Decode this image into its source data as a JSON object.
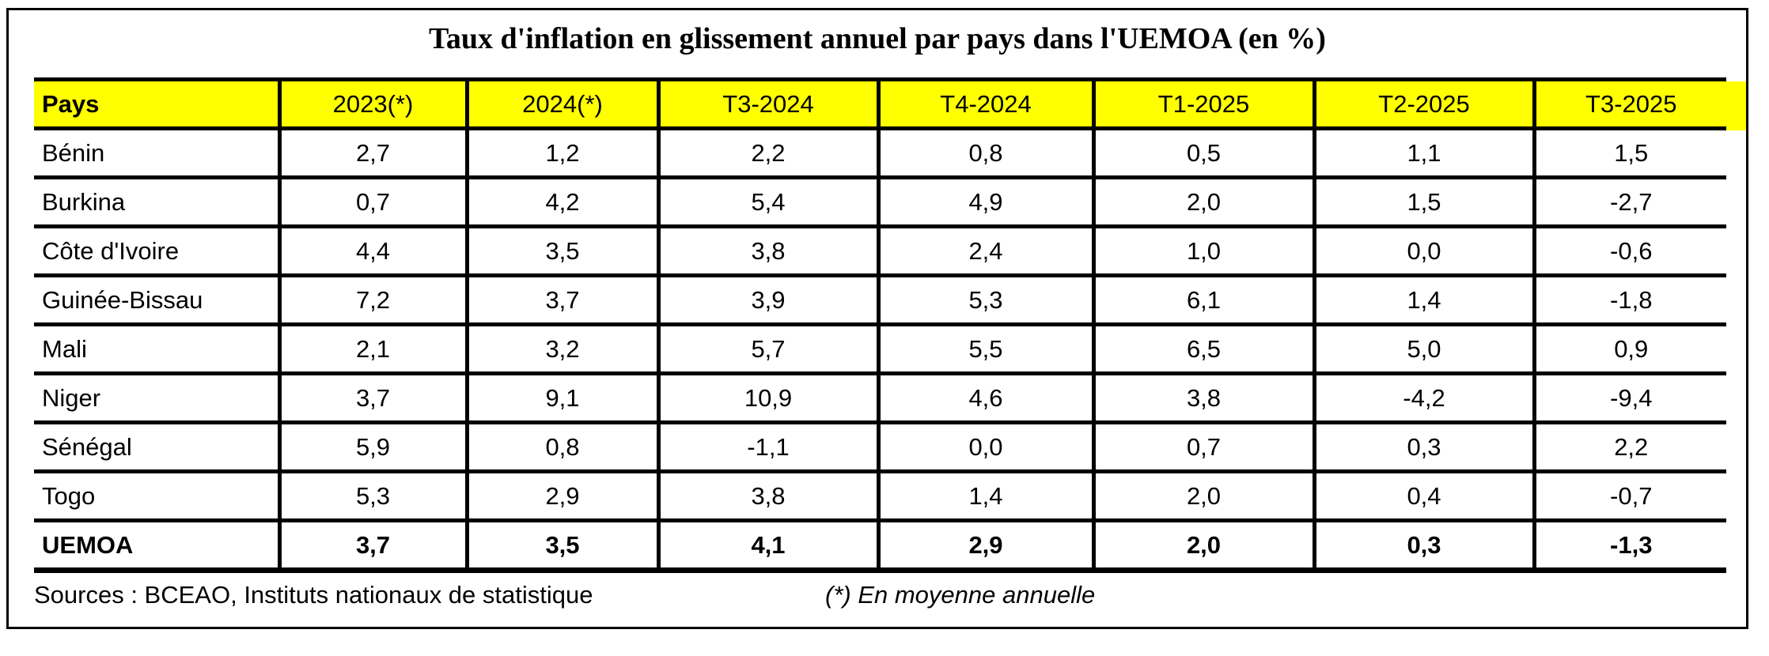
{
  "title": "Taux d'inflation en glissement annuel par pays dans l'UEMOA (en %)",
  "table": {
    "headers": [
      "Pays",
      "2023(*)",
      "2024(*)",
      "T3-2024",
      "T4-2024",
      "T1-2025",
      "T2-2025",
      "T3-2025"
    ],
    "rows": [
      {
        "bold": false,
        "cells": [
          "Bénin",
          "2,7",
          "1,2",
          "2,2",
          "0,8",
          "0,5",
          "1,1",
          "1,5"
        ]
      },
      {
        "bold": false,
        "cells": [
          "Burkina",
          "0,7",
          "4,2",
          "5,4",
          "4,9",
          "2,0",
          "1,5",
          "-2,7"
        ]
      },
      {
        "bold": false,
        "cells": [
          "Côte d'Ivoire",
          "4,4",
          "3,5",
          "3,8",
          "2,4",
          "1,0",
          "0,0",
          "-0,6"
        ]
      },
      {
        "bold": false,
        "cells": [
          "Guinée-Bissau",
          "7,2",
          "3,7",
          "3,9",
          "5,3",
          "6,1",
          "1,4",
          "-1,8"
        ]
      },
      {
        "bold": false,
        "cells": [
          "Mali",
          "2,1",
          "3,2",
          "5,7",
          "5,5",
          "6,5",
          "5,0",
          "0,9"
        ]
      },
      {
        "bold": false,
        "cells": [
          "Niger",
          "3,7",
          "9,1",
          "10,9",
          "4,6",
          "3,8",
          "-4,2",
          "-9,4"
        ]
      },
      {
        "bold": false,
        "cells": [
          "Sénégal",
          "5,9",
          "0,8",
          "-1,1",
          "0,0",
          "0,7",
          "0,3",
          "2,2"
        ]
      },
      {
        "bold": false,
        "cells": [
          "Togo",
          "5,3",
          "2,9",
          "3,8",
          "1,4",
          "2,0",
          "0,4",
          "-0,7"
        ]
      },
      {
        "bold": true,
        "cells": [
          "UEMOA",
          "3,7",
          "3,5",
          "4,1",
          "2,9",
          "2,0",
          "0,3",
          "-1,3"
        ]
      }
    ]
  },
  "footer": {
    "sources": "Sources : BCEAO, Instituts nationaux de statistique",
    "note": "(*) En moyenne annuelle"
  },
  "colors": {
    "header_bg": "#FFFF00",
    "border": "#000000",
    "text": "#000000",
    "background": "#FFFFFF"
  },
  "chart_data": {
    "type": "table",
    "title": "Taux d'inflation en glissement annuel par pays dans l'UEMOA (en %)",
    "unit": "%",
    "decimal_separator_displayed": ",",
    "categories": [
      "Bénin",
      "Burkina",
      "Côte d'Ivoire",
      "Guinée-Bissau",
      "Mali",
      "Niger",
      "Sénégal",
      "Togo",
      "UEMOA"
    ],
    "series": [
      {
        "name": "2023(*)",
        "values": [
          2.7,
          0.7,
          4.4,
          7.2,
          2.1,
          3.7,
          5.9,
          5.3,
          3.7
        ]
      },
      {
        "name": "2024(*)",
        "values": [
          1.2,
          4.2,
          3.5,
          3.7,
          3.2,
          9.1,
          0.8,
          2.9,
          3.5
        ]
      },
      {
        "name": "T3-2024",
        "values": [
          2.2,
          5.4,
          3.8,
          3.9,
          5.7,
          10.9,
          -1.1,
          3.8,
          4.1
        ]
      },
      {
        "name": "T4-2024",
        "values": [
          0.8,
          4.9,
          2.4,
          5.3,
          5.5,
          4.6,
          0.0,
          1.4,
          2.9
        ]
      },
      {
        "name": "T1-2025",
        "values": [
          0.5,
          2.0,
          1.0,
          6.1,
          6.5,
          3.8,
          0.7,
          2.0,
          2.0
        ]
      },
      {
        "name": "T2-2025",
        "values": [
          1.1,
          1.5,
          0.0,
          1.4,
          5.0,
          -4.2,
          0.3,
          0.4,
          0.3
        ]
      },
      {
        "name": "T3-2025",
        "values": [
          1.5,
          -2.7,
          -0.6,
          -1.8,
          0.9,
          -9.4,
          2.2,
          -0.7,
          -1.3
        ]
      }
    ],
    "notes": [
      "(*) En moyenne annuelle",
      "Sources : BCEAO, Instituts nationaux de statistique"
    ]
  }
}
